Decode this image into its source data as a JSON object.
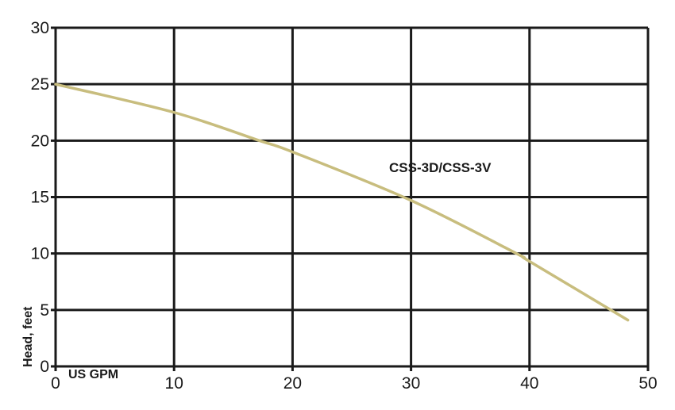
{
  "chart_data": {
    "type": "line",
    "title": "",
    "xlabel": "US GPM",
    "ylabel": "Head, feet",
    "xlim": [
      0,
      50
    ],
    "ylim": [
      0,
      30
    ],
    "xticks": [
      0,
      10,
      20,
      30,
      40,
      50
    ],
    "yticks": [
      0,
      5,
      10,
      15,
      20,
      25,
      30
    ],
    "grid": true,
    "series": [
      {
        "name": "CSS-3D/CSS-3V",
        "color": "#c8bd7e",
        "x": [
          0,
          10,
          17.2,
          20,
          30,
          38.9,
          40,
          48.3
        ],
        "y": [
          25,
          22.5,
          20,
          19,
          14.7,
          10,
          9.3,
          4.1
        ]
      }
    ]
  }
}
